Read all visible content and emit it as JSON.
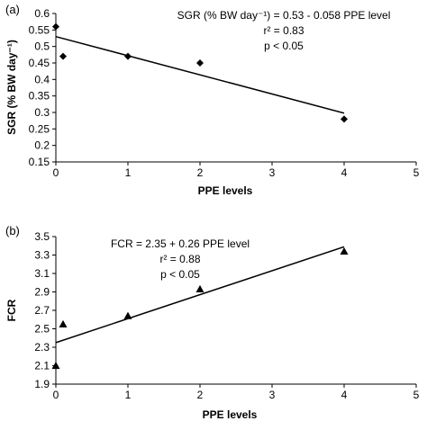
{
  "chart_data": [
    {
      "type": "scatter",
      "panel_label": "(a)",
      "xlabel": "PPE levels",
      "ylabel": "SGR (% BW day⁻¹)",
      "xlim": [
        0,
        5
      ],
      "ylim": [
        0.15,
        0.6
      ],
      "xticks": [
        "0",
        "1",
        "2",
        "3",
        "4",
        "5"
      ],
      "yticks": [
        "0.15",
        "0.2",
        "0.25",
        "0.3",
        "0.35",
        "0.4",
        "0.45",
        "0.5",
        "0.55",
        "0.6"
      ],
      "marker": "diamond",
      "points": [
        {
          "x": 0,
          "y": 0.56
        },
        {
          "x": 0.1,
          "y": 0.47
        },
        {
          "x": 1,
          "y": 0.47
        },
        {
          "x": 2,
          "y": 0.45
        },
        {
          "x": 4,
          "y": 0.28
        }
      ],
      "trendline": {
        "intercept": 0.53,
        "slope": -0.058,
        "x_range": [
          0,
          4
        ]
      },
      "annotation": {
        "equation": "SGR (% BW day⁻¹) = 0.53 - 0.058 PPE level",
        "r2": "r² = 0.83",
        "p": "p < 0.05"
      }
    },
    {
      "type": "scatter",
      "panel_label": "(b)",
      "xlabel": "PPE levels",
      "ylabel": "FCR",
      "xlim": [
        0,
        5
      ],
      "ylim": [
        1.9,
        3.5
      ],
      "xticks": [
        "0",
        "1",
        "2",
        "3",
        "4",
        "5"
      ],
      "yticks": [
        "1.9",
        "2.1",
        "2.3",
        "2.5",
        "2.7",
        "2.9",
        "3.1",
        "3.3",
        "3.5"
      ],
      "marker": "triangle",
      "points": [
        {
          "x": 0,
          "y": 2.1
        },
        {
          "x": 0.1,
          "y": 2.55
        },
        {
          "x": 1,
          "y": 2.64
        },
        {
          "x": 2,
          "y": 2.93
        },
        {
          "x": 4,
          "y": 3.34
        }
      ],
      "trendline": {
        "intercept": 2.35,
        "slope": 0.26,
        "x_range": [
          0,
          4
        ]
      },
      "annotation": {
        "equation": "FCR = 2.35 + 0.26 PPE level",
        "r2": "r² = 0.88",
        "p": "p < 0.05"
      }
    }
  ]
}
